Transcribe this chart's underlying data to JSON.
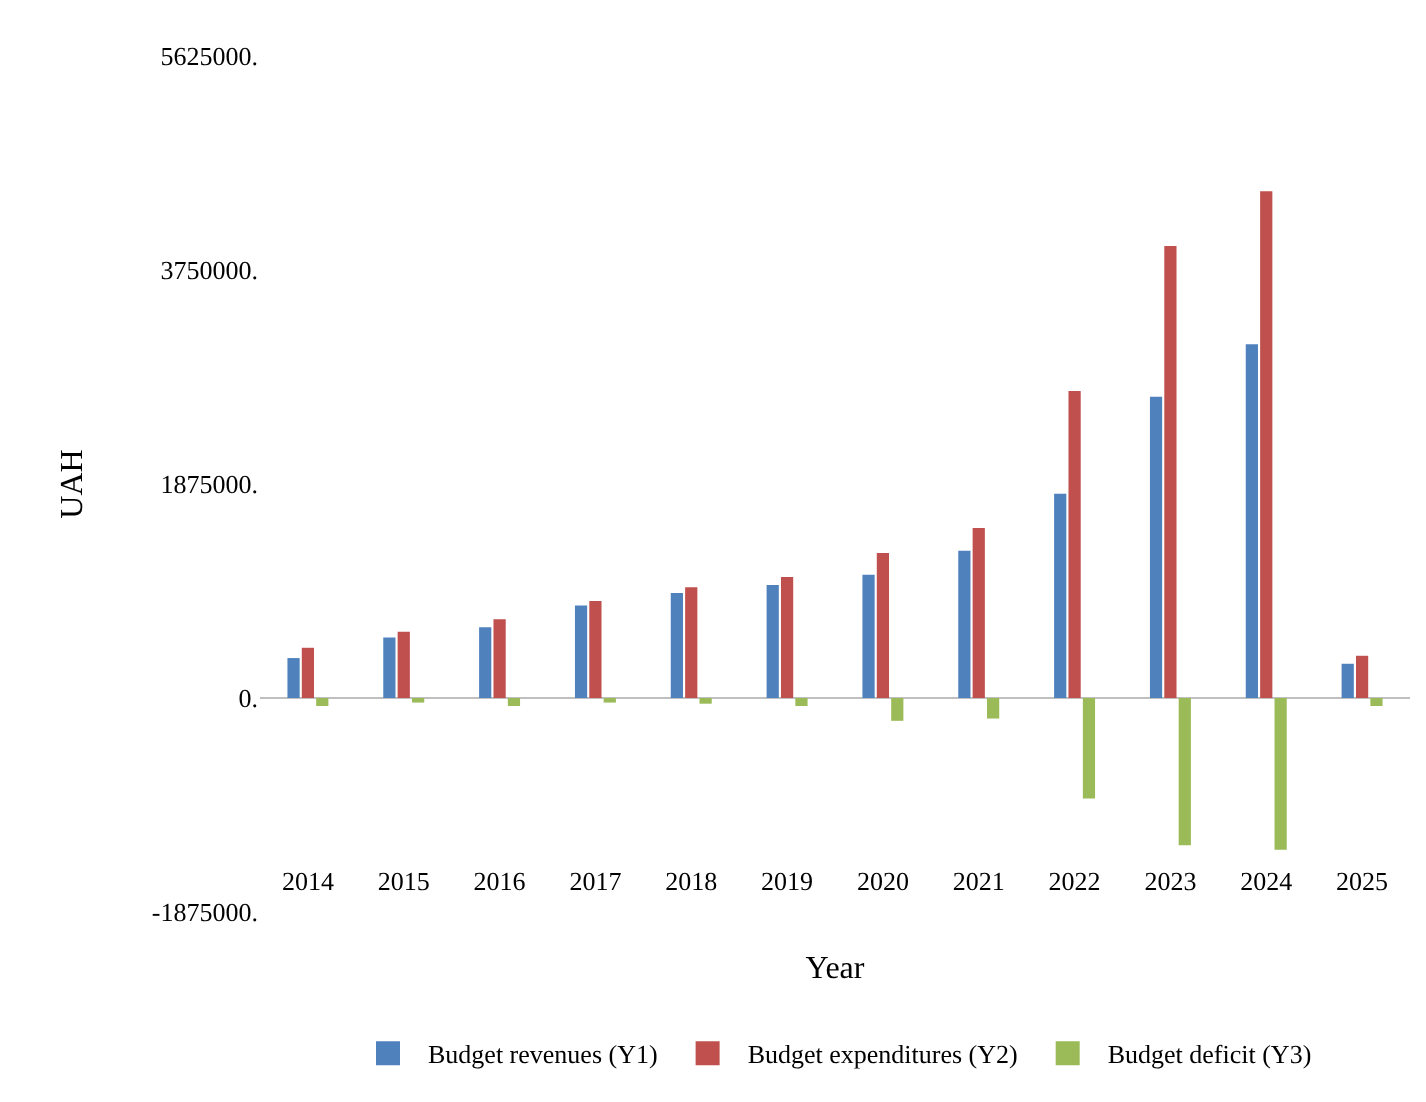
{
  "chart_data": {
    "type": "bar",
    "xlabel": "Year",
    "ylabel": "UAH",
    "categories": [
      "2014",
      "2015",
      "2016",
      "2017",
      "2018",
      "2019",
      "2020",
      "2021",
      "2022",
      "2023",
      "2024",
      "2025"
    ],
    "series": [
      {
        "name": "Budget revenues (Y1)",
        "color": "#4f81bd",
        "values": [
          350000,
          530000,
          620000,
          810000,
          920000,
          990000,
          1080000,
          1290000,
          1790000,
          2640000,
          3100000,
          300000
        ]
      },
      {
        "name": "Budget expenditures (Y2)",
        "color": "#c0504d",
        "values": [
          440000,
          580000,
          690000,
          850000,
          970000,
          1060000,
          1270000,
          1490000,
          2690000,
          3960000,
          4440000,
          370000
        ]
      },
      {
        "name": "Budget deficit (Y3)",
        "color": "#9bbb59",
        "values": [
          -70000,
          -40000,
          -70000,
          -40000,
          -50000,
          -70000,
          -200000,
          -180000,
          -880000,
          -1290000,
          -1330000,
          -70000
        ]
      }
    ],
    "ylim": [
      -1875000,
      5625000
    ],
    "yticks": [
      {
        "value": -1875000,
        "label": "-1875000."
      },
      {
        "value": 0,
        "label": "0."
      },
      {
        "value": 1875000,
        "label": "1875000."
      },
      {
        "value": 3750000,
        "label": "3750000."
      },
      {
        "value": 5625000,
        "label": "5625000."
      }
    ],
    "ref_lines": [
      {
        "axis": "y",
        "value": 0,
        "color": "#bfbfbf"
      }
    ],
    "legend": "bottom"
  }
}
